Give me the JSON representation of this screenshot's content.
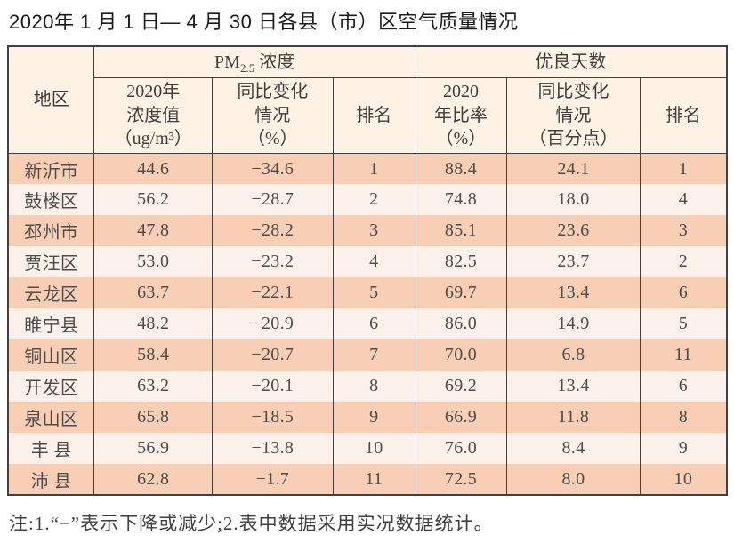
{
  "page": {
    "title": "2020年 1 月 1 日— 4 月 30 日各县（市）区空气质量情况",
    "footnote": "注:1.“−”表示下降或减少;2.表中数据采用实况数据统计。"
  },
  "colors": {
    "row_dark": "#f8ceb5",
    "row_light": "#fcf1ea",
    "header_bg": "#fdf2e3",
    "border": "#414141",
    "text": "#4c4c4c",
    "title_text": "#1b1b1b"
  },
  "table": {
    "header": {
      "region": "地区",
      "pm_group": {
        "prefix": "PM",
        "sub": "2.5",
        "suffix": " 浓度"
      },
      "good_group": "优良天数",
      "pm_value": "2020年\n浓度值\n（ug/m³）",
      "pm_change": "同比变化\n情况\n（%）",
      "pm_rank": "排名",
      "good_ratio": "2020\n年比率\n（%）",
      "good_change": "同比变化\n情况\n（百分点）",
      "good_rank": "排名"
    },
    "rows": [
      {
        "region": "新沂市",
        "pm_value": "44.6",
        "pm_change": "−34.6",
        "pm_rank": "1",
        "good_ratio": "88.4",
        "good_change": "24.1",
        "good_rank": "1"
      },
      {
        "region": "鼓楼区",
        "pm_value": "56.2",
        "pm_change": "−28.7",
        "pm_rank": "2",
        "good_ratio": "74.8",
        "good_change": "18.0",
        "good_rank": "4"
      },
      {
        "region": "邳州市",
        "pm_value": "47.8",
        "pm_change": "−28.2",
        "pm_rank": "3",
        "good_ratio": "85.1",
        "good_change": "23.6",
        "good_rank": "3"
      },
      {
        "region": "贾汪区",
        "pm_value": "53.0",
        "pm_change": "−23.2",
        "pm_rank": "4",
        "good_ratio": "82.5",
        "good_change": "23.7",
        "good_rank": "2"
      },
      {
        "region": "云龙区",
        "pm_value": "63.7",
        "pm_change": "−22.1",
        "pm_rank": "5",
        "good_ratio": "69.7",
        "good_change": "13.4",
        "good_rank": "6"
      },
      {
        "region": "睢宁县",
        "pm_value": "48.2",
        "pm_change": "−20.9",
        "pm_rank": "6",
        "good_ratio": "86.0",
        "good_change": "14.9",
        "good_rank": "5"
      },
      {
        "region": "铜山区",
        "pm_value": "58.4",
        "pm_change": "−20.7",
        "pm_rank": "7",
        "good_ratio": "70.0",
        "good_change": "6.8",
        "good_rank": "11"
      },
      {
        "region": "开发区",
        "pm_value": "63.2",
        "pm_change": "−20.1",
        "pm_rank": "8",
        "good_ratio": "69.2",
        "good_change": "13.4",
        "good_rank": "6"
      },
      {
        "region": "泉山区",
        "pm_value": "65.8",
        "pm_change": "−18.5",
        "pm_rank": "9",
        "good_ratio": "66.9",
        "good_change": "11.8",
        "good_rank": "8"
      },
      {
        "region": "丰 县",
        "pm_value": "56.9",
        "pm_change": "−13.8",
        "pm_rank": "10",
        "good_ratio": "76.0",
        "good_change": "8.4",
        "good_rank": "9"
      },
      {
        "region": "沛 县",
        "pm_value": "62.8",
        "pm_change": "−1.7",
        "pm_rank": "11",
        "good_ratio": "72.5",
        "good_change": "8.0",
        "good_rank": "10"
      }
    ]
  }
}
